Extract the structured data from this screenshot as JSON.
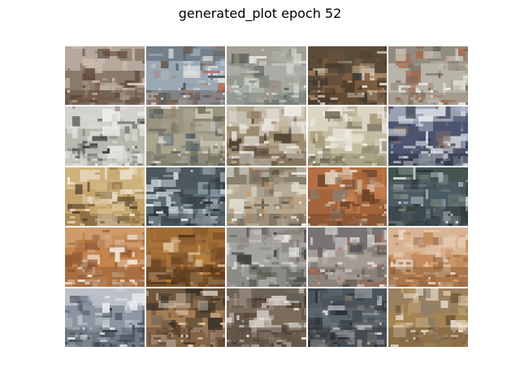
{
  "figure": {
    "title": "generated_plot epoch 52"
  },
  "grid": {
    "rows": 5,
    "cols": 5,
    "tiles": [
      {
        "palette": [
          "#8a7a6a",
          "#c9b8a8",
          "#5a4638",
          "#b0a090",
          "#7b5a46",
          "#e0d8d0"
        ]
      },
      {
        "palette": [
          "#9aa8b4",
          "#c4c8cc",
          "#6a5c52",
          "#b86a50",
          "#dcdcdc",
          "#4c5660"
        ]
      },
      {
        "palette": [
          "#a8aca4",
          "#d0d0c8",
          "#7c847c",
          "#5c6058",
          "#e6e6e0",
          "#9c9488"
        ]
      },
      {
        "palette": [
          "#7a5c40",
          "#c4ac8c",
          "#4c3a2a",
          "#a88a6a",
          "#e0d4c4",
          "#3c3c34"
        ]
      },
      {
        "palette": [
          "#b8b4a8",
          "#dcdcd0",
          "#8c8070",
          "#a46c50",
          "#eceae4",
          "#6c6458"
        ]
      },
      {
        "palette": [
          "#b8b8b0",
          "#3c3c3c",
          "#dcdcd4",
          "#7c7c74",
          "#5c5850",
          "#ecece8"
        ]
      },
      {
        "palette": [
          "#a8a490",
          "#d4d0c0",
          "#6c6c5c",
          "#4c5c6c",
          "#e4e0d4",
          "#8c8470"
        ]
      },
      {
        "palette": [
          "#9c8c70",
          "#e8e4dc",
          "#6c5c48",
          "#c4b498",
          "#4c4034",
          "#f0eee8"
        ]
      },
      {
        "palette": [
          "#c4bca0",
          "#e8e4d4",
          "#8c8468",
          "#a89c78",
          "#6c6450",
          "#f0ece4"
        ]
      },
      {
        "palette": [
          "#4c5470",
          "#a4b0c4",
          "#2c3040",
          "#d4dce4",
          "#7c6c64",
          "#eceef0"
        ]
      },
      {
        "palette": [
          "#c4a46c",
          "#e8dcc4",
          "#8c6c40",
          "#f0e8d8",
          "#5c4830",
          "#d8c090"
        ]
      },
      {
        "palette": [
          "#5c6c74",
          "#c4ccd0",
          "#2c343c",
          "#e4e8ec",
          "#8c9ca4",
          "#3c4448"
        ]
      },
      {
        "palette": [
          "#b4aa94",
          "#e0dcd0",
          "#7c7060",
          "#c49c74",
          "#eeece4",
          "#5c5444"
        ]
      },
      {
        "palette": [
          "#a4643c",
          "#d4b494",
          "#6c4428",
          "#e8dccc",
          "#8c7c6c",
          "#c47c4c"
        ]
      },
      {
        "palette": [
          "#4c5c64",
          "#a4acb0",
          "#2c3438",
          "#d4d8dc",
          "#6c7c74",
          "#3c4c3c"
        ]
      },
      {
        "palette": [
          "#c4844c",
          "#e8d4bc",
          "#8c5430",
          "#f0e4d4",
          "#a46c44",
          "#d8b48c"
        ]
      },
      {
        "palette": [
          "#8c5c30",
          "#c49454",
          "#4c3018",
          "#e0c49c",
          "#6c4424",
          "#b47c3c"
        ]
      },
      {
        "palette": [
          "#a4a4a0",
          "#d8d8d4",
          "#6c6c64",
          "#3c3c38",
          "#eceae8",
          "#8c847c"
        ]
      },
      {
        "palette": [
          "#a49c94",
          "#dcd8d4",
          "#6c645c",
          "#b46c54",
          "#ecebe8",
          "#4c4c54"
        ]
      },
      {
        "palette": [
          "#c48c5c",
          "#e4c8ac",
          "#8c5c38",
          "#d4a47c",
          "#a47450",
          "#ecdccc"
        ]
      },
      {
        "palette": [
          "#8c94a0",
          "#d4d8dc",
          "#4c5460",
          "#b4bcc4",
          "#2c3038",
          "#eceef0"
        ]
      },
      {
        "palette": [
          "#a47c54",
          "#d8c0a4",
          "#5c4430",
          "#e8dcd0",
          "#7c6c5c",
          "#3c3428"
        ]
      },
      {
        "palette": [
          "#7c6c5c",
          "#d4ccc4",
          "#4c3c30",
          "#a49484",
          "#eceae8",
          "#5c5c54"
        ]
      },
      {
        "palette": [
          "#5c646c",
          "#b4b8bc",
          "#2c3034",
          "#dcdcdc",
          "#847c74",
          "#3c444c"
        ]
      },
      {
        "palette": [
          "#a48454",
          "#d8c4a4",
          "#6c5434",
          "#e8dccc",
          "#c4a474",
          "#8c7c6c"
        ]
      }
    ]
  }
}
